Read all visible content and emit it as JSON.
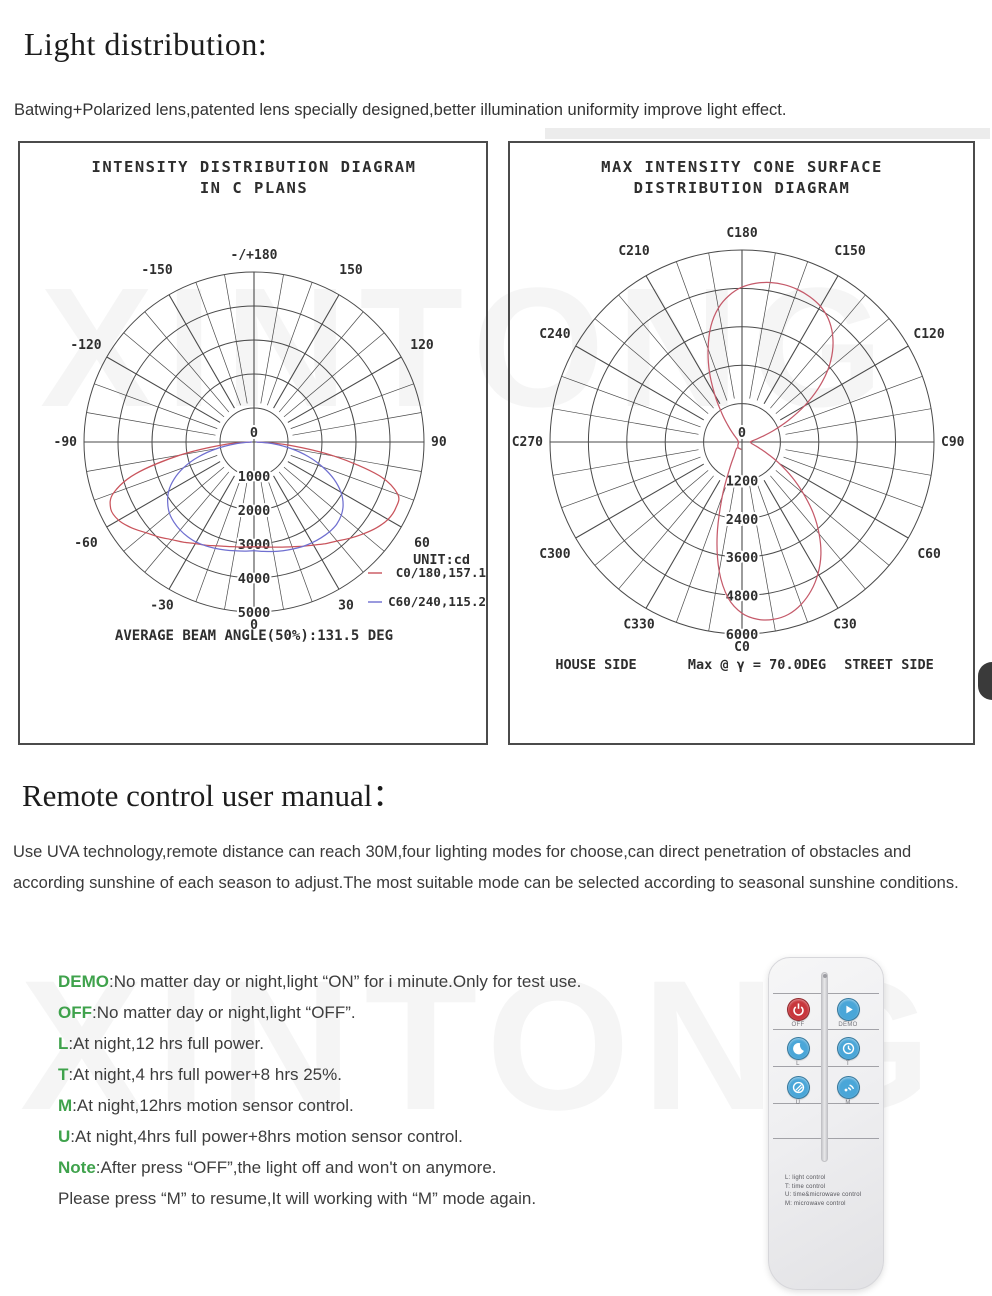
{
  "header": {
    "title": "Light distribution:",
    "subtitle": "Batwing+Polarized lens,patented lens specially designed,better illumination uniformity improve light effect."
  },
  "section": {
    "title": "Remote control user manual：",
    "paragraph": "Use UVA technology,remote distance can reach 30M,four lighting modes for choose,can direct penetration of obstacles and according sunshine of each season to adjust.The most suitable mode can be selected according to seasonal sunshine conditions."
  },
  "modes": [
    {
      "label": "DEMO",
      "text": ":No matter day or night,light “ON” for i minute.Only for test use."
    },
    {
      "label": "OFF",
      "text": ":No matter day or night,light “OFF”."
    },
    {
      "label": "L",
      "text": ":At night,12 hrs full power."
    },
    {
      "label": "T",
      "text": ":At night,4 hrs full power+8 hrs 25%."
    },
    {
      "label": "M",
      "text": ":At night,12hrs motion sensor control."
    },
    {
      "label": "U",
      "text": ":At night,4hrs full power+8hrs motion sensor control."
    },
    {
      "label": "Note",
      "text": ":After press “OFF”,the light off and won't on anymore."
    },
    {
      "label": "",
      "text": "Please press “M” to resume,It will working with “M” mode again."
    }
  ],
  "remote": {
    "buttons": [
      {
        "name": "off-button",
        "label": "OFF",
        "color": "#c8363c",
        "icon": "power-icon"
      },
      {
        "name": "demo-button",
        "label": "DEMO",
        "color": "#4aa6d8",
        "icon": "play-icon"
      },
      {
        "name": "l-button",
        "label": "L",
        "color": "#4aa6d8",
        "icon": "moon-icon"
      },
      {
        "name": "t-button",
        "label": "T",
        "color": "#4aa6d8",
        "icon": "clock-icon"
      },
      {
        "name": "u-button",
        "label": "U",
        "color": "#4aa6d8",
        "icon": "timer-icon"
      },
      {
        "name": "m-button",
        "label": "M",
        "color": "#4aa6d8",
        "icon": "motion-icon"
      }
    ],
    "legend": [
      "L: light control",
      "T: time control",
      "U: time&microwave control",
      "M: microwave control"
    ]
  },
  "colors": {
    "accent_green": "#3fa24c",
    "diagram_ink": "#2e2e2e",
    "grid": "#4a4a4a",
    "red_series": "#c9545c",
    "blue_series": "#6f6fd0",
    "cone_series": "#c55a6a"
  },
  "watermark": "XINTONG",
  "chart_data": [
    {
      "type": "polar",
      "title_lines": [
        "INTENSITY DISTRIBUTION DIAGRAM",
        "IN C PLANS"
      ],
      "unit_label": "UNIT:cd",
      "rings": [
        1000,
        2000,
        3000,
        4000,
        5000
      ],
      "center_label": "0",
      "angle_labels": [
        {
          "a": 180,
          "t": "-/+180"
        },
        {
          "a": -150,
          "t": "-150"
        },
        {
          "a": 150,
          "t": "150"
        },
        {
          "a": -120,
          "t": "-120"
        },
        {
          "a": 120,
          "t": "120"
        },
        {
          "a": -90,
          "t": "-90"
        },
        {
          "a": 90,
          "t": "90"
        },
        {
          "a": -60,
          "t": "-60"
        },
        {
          "a": 60,
          "t": "60"
        },
        {
          "a": -30,
          "t": "-30"
        },
        {
          "a": 30,
          "t": "30"
        },
        {
          "a": 0,
          "t": "0"
        }
      ],
      "caption": "AVERAGE BEAM ANGLE(50%):131.5 DEG",
      "series": [
        {
          "name": "C0/180,157.1",
          "color": "#c9545c",
          "closed": false,
          "points": [
            [
              -90,
              80
            ],
            [
              -85,
              900
            ],
            [
              -80,
              2200
            ],
            [
              -75,
              3600
            ],
            [
              -70,
              4400
            ],
            [
              -65,
              4650
            ],
            [
              -60,
              4600
            ],
            [
              -55,
              4400
            ],
            [
              -50,
              4150
            ],
            [
              -45,
              3950
            ],
            [
              -40,
              3750
            ],
            [
              -35,
              3600
            ],
            [
              -30,
              3450
            ],
            [
              -25,
              3350
            ],
            [
              -20,
              3250
            ],
            [
              -15,
              3180
            ],
            [
              -10,
              3130
            ],
            [
              -5,
              3100
            ],
            [
              0,
              3080
            ],
            [
              5,
              3100
            ],
            [
              10,
              3140
            ],
            [
              15,
              3200
            ],
            [
              20,
              3280
            ],
            [
              25,
              3380
            ],
            [
              30,
              3500
            ],
            [
              35,
              3650
            ],
            [
              40,
              3800
            ],
            [
              45,
              4000
            ],
            [
              50,
              4200
            ],
            [
              55,
              4400
            ],
            [
              60,
              4550
            ],
            [
              65,
              4600
            ],
            [
              70,
              4500
            ],
            [
              75,
              3800
            ],
            [
              80,
              2400
            ],
            [
              85,
              1000
            ],
            [
              90,
              80
            ]
          ]
        },
        {
          "name": "C60/240,115.2",
          "color": "#6f6fd0",
          "closed": false,
          "points": [
            [
              -90,
              60
            ],
            [
              -85,
              500
            ],
            [
              -80,
              1100
            ],
            [
              -75,
              1700
            ],
            [
              -70,
              2200
            ],
            [
              -65,
              2600
            ],
            [
              -60,
              2900
            ],
            [
              -55,
              3100
            ],
            [
              -50,
              3250
            ],
            [
              -45,
              3330
            ],
            [
              -40,
              3380
            ],
            [
              -35,
              3400
            ],
            [
              -30,
              3400
            ],
            [
              -25,
              3370
            ],
            [
              -20,
              3330
            ],
            [
              -15,
              3290
            ],
            [
              -10,
              3250
            ],
            [
              -5,
              3220
            ],
            [
              0,
              3200
            ],
            [
              5,
              3230
            ],
            [
              10,
              3270
            ],
            [
              15,
              3310
            ],
            [
              20,
              3350
            ],
            [
              25,
              3390
            ],
            [
              30,
              3420
            ],
            [
              35,
              3440
            ],
            [
              40,
              3450
            ],
            [
              45,
              3430
            ],
            [
              50,
              3350
            ],
            [
              55,
              3200
            ],
            [
              60,
              2950
            ],
            [
              65,
              2600
            ],
            [
              70,
              2150
            ],
            [
              75,
              1650
            ],
            [
              80,
              1100
            ],
            [
              85,
              550
            ],
            [
              90,
              60
            ]
          ]
        }
      ]
    },
    {
      "type": "polar",
      "title_lines": [
        "MAX INTENSITY CONE SURFACE",
        "DISTRIBUTION DIAGRAM"
      ],
      "rings": [
        1200,
        2400,
        3600,
        4800,
        6000
      ],
      "center_label": "0",
      "angle_labels": [
        {
          "a": 180,
          "t": "C180"
        },
        {
          "a": -150,
          "t": "C210"
        },
        {
          "a": 150,
          "t": "C150"
        },
        {
          "a": -120,
          "t": "C240"
        },
        {
          "a": 120,
          "t": "C120"
        },
        {
          "a": -90,
          "t": "C270"
        },
        {
          "a": 90,
          "t": "C90"
        },
        {
          "a": -60,
          "t": "C300"
        },
        {
          "a": 60,
          "t": "C60"
        },
        {
          "a": -30,
          "t": "C330"
        },
        {
          "a": 30,
          "t": "C30"
        },
        {
          "a": 0,
          "t": "C0"
        }
      ],
      "footer": {
        "left": "HOUSE SIDE",
        "mid": "Max @ γ = 70.0DEG",
        "right": "STREET SIDE"
      },
      "series": [
        {
          "name": "max intensity cone surface",
          "color": "#c55a6a",
          "closed": true,
          "points": [
            [
              -40,
              250
            ],
            [
              -30,
              500
            ],
            [
              -25,
              900
            ],
            [
              -20,
              1800
            ],
            [
              -15,
              3000
            ],
            [
              -10,
              4100
            ],
            [
              -5,
              4900
            ],
            [
              0,
              5350
            ],
            [
              5,
              5560
            ],
            [
              10,
              5630
            ],
            [
              15,
              5580
            ],
            [
              20,
              5400
            ],
            [
              25,
              5120
            ],
            [
              30,
              4750
            ],
            [
              35,
              4300
            ],
            [
              40,
              3750
            ],
            [
              45,
              3150
            ],
            [
              50,
              2500
            ],
            [
              55,
              1900
            ],
            [
              60,
              1350
            ],
            [
              65,
              900
            ],
            [
              70,
              600
            ],
            [
              75,
              420
            ],
            [
              80,
              320
            ],
            [
              85,
              280
            ],
            [
              90,
              260
            ],
            [
              95,
              300
            ],
            [
              100,
              420
            ],
            [
              105,
              650
            ],
            [
              110,
              1050
            ],
            [
              115,
              1600
            ],
            [
              120,
              2250
            ],
            [
              125,
              2900
            ],
            [
              130,
              3500
            ],
            [
              135,
              4000
            ],
            [
              140,
              4400
            ],
            [
              145,
              4700
            ],
            [
              150,
              4900
            ],
            [
              155,
              5010
            ],
            [
              160,
              5070
            ],
            [
              165,
              5090
            ],
            [
              170,
              5060
            ],
            [
              175,
              4980
            ],
            [
              180,
              4840
            ],
            [
              185,
              4600
            ],
            [
              190,
              4250
            ],
            [
              195,
              3750
            ],
            [
              200,
              3100
            ],
            [
              205,
              2400
            ],
            [
              210,
              1700
            ],
            [
              215,
              1100
            ],
            [
              220,
              700
            ],
            [
              225,
              450
            ],
            [
              230,
              300
            ],
            [
              235,
              220
            ],
            [
              240,
              180
            ],
            [
              250,
              140
            ],
            [
              260,
              120
            ],
            [
              270,
              110
            ],
            [
              280,
              110
            ],
            [
              290,
              120
            ],
            [
              300,
              140
            ],
            [
              310,
              170
            ],
            [
              320,
              200
            ],
            [
              330,
              220
            ],
            [
              340,
              220
            ],
            [
              350,
              230
            ]
          ]
        }
      ]
    }
  ]
}
